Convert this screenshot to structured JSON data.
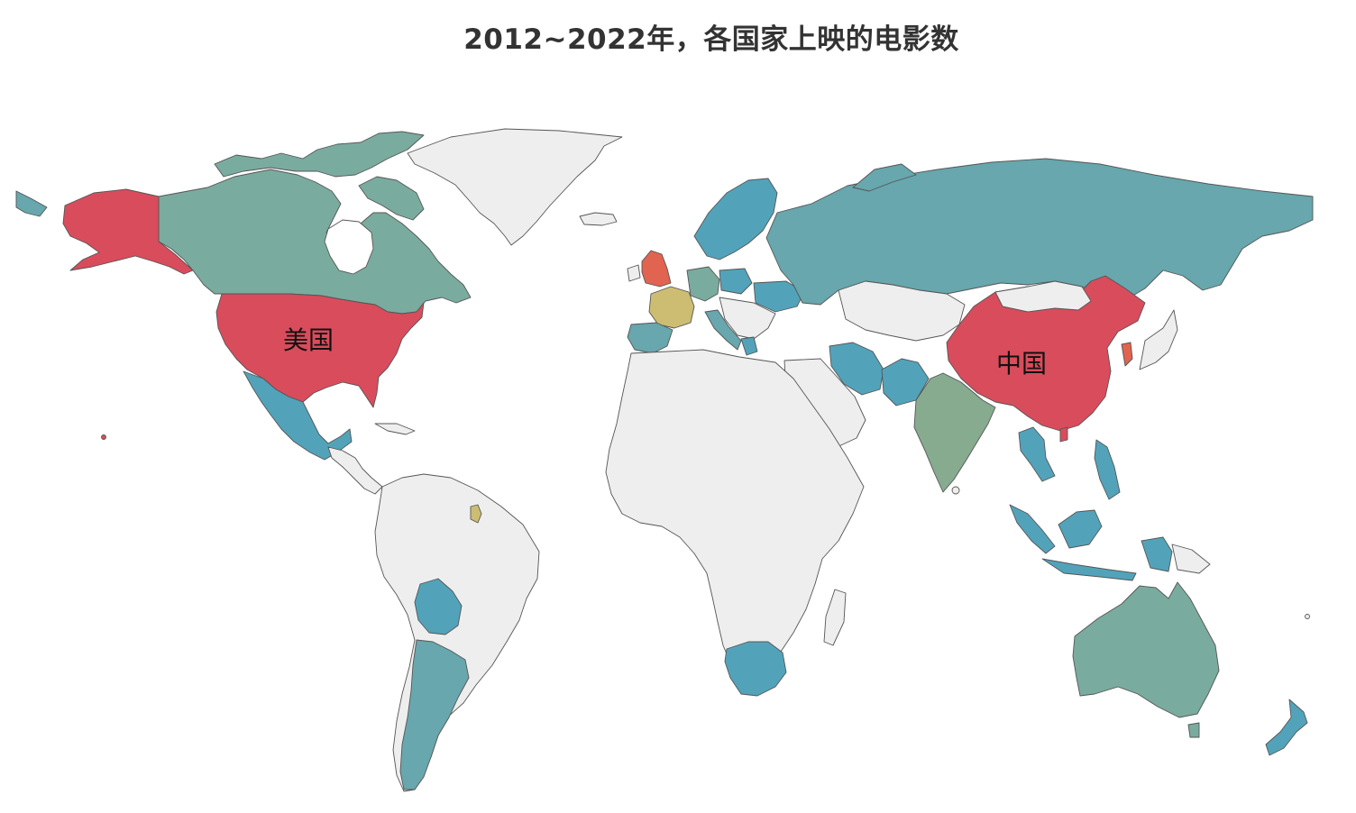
{
  "title": "2012~2022年，各国家上映的电影数",
  "labels": {
    "usa": "美国",
    "china": "中国"
  },
  "colors": {
    "background_country": "#eeeeee",
    "border": "#555555",
    "tier_red": "#d94c5c",
    "tier_orange": "#e0644f",
    "tier_yellow": "#cdbd72",
    "tier_sage": "#87ab8f",
    "tier_teal_green": "#7aab9f",
    "tier_teal": "#67a7ad",
    "tier_blue": "#52a3ba"
  },
  "regions": [
    {
      "name": "美国",
      "tier": "tier_red"
    },
    {
      "name": "中国",
      "tier": "tier_red"
    },
    {
      "name": "台湾",
      "tier": "tier_red"
    },
    {
      "name": "英国",
      "tier": "tier_orange"
    },
    {
      "name": "韩国",
      "tier": "tier_orange"
    },
    {
      "name": "法国",
      "tier": "tier_yellow"
    },
    {
      "name": "法属圭亚那",
      "tier": "tier_yellow"
    },
    {
      "name": "印度",
      "tier": "tier_sage"
    },
    {
      "name": "加拿大",
      "tier": "tier_teal_green"
    },
    {
      "name": "澳大利亚",
      "tier": "tier_teal_green"
    },
    {
      "name": "德国",
      "tier": "tier_teal_green"
    },
    {
      "name": "俄罗斯",
      "tier": "tier_teal"
    },
    {
      "name": "阿根廷",
      "tier": "tier_teal"
    },
    {
      "name": "西班牙",
      "tier": "tier_teal"
    },
    {
      "name": "意大利",
      "tier": "tier_teal"
    },
    {
      "name": "墨西哥",
      "tier": "tier_blue"
    },
    {
      "name": "伊朗",
      "tier": "tier_blue"
    },
    {
      "name": "泰国",
      "tier": "tier_blue"
    },
    {
      "name": "印度尼西亚",
      "tier": "tier_blue"
    },
    {
      "name": "菲律宾",
      "tier": "tier_blue"
    },
    {
      "name": "南非",
      "tier": "tier_blue"
    },
    {
      "name": "新西兰",
      "tier": "tier_blue"
    },
    {
      "name": "玻利维亚",
      "tier": "tier_blue"
    }
  ]
}
